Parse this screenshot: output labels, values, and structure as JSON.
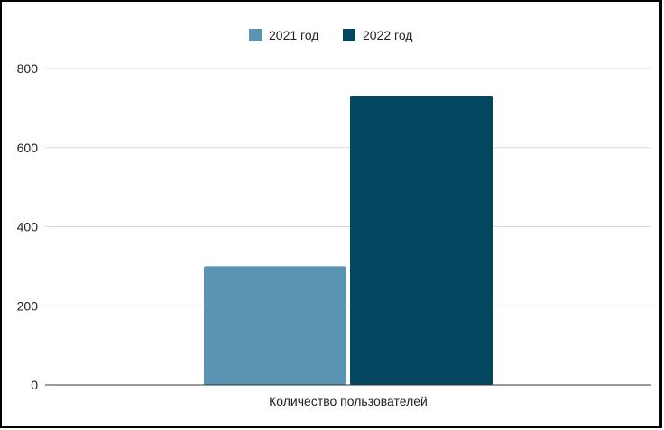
{
  "chart_data": {
    "type": "bar",
    "title": "",
    "xlabel": "",
    "ylabel": "",
    "categories": [
      "Количество пользователей"
    ],
    "series": [
      {
        "name": "2021 год",
        "values": [
          300
        ],
        "color": "#5b93b3"
      },
      {
        "name": "2022 год",
        "values": [
          730
        ],
        "color": "#02475f"
      }
    ],
    "ylim": [
      0,
      800
    ],
    "yticks": [
      "0",
      "200",
      "400",
      "600",
      "800"
    ],
    "grid": true,
    "legend_position": "top-center"
  }
}
